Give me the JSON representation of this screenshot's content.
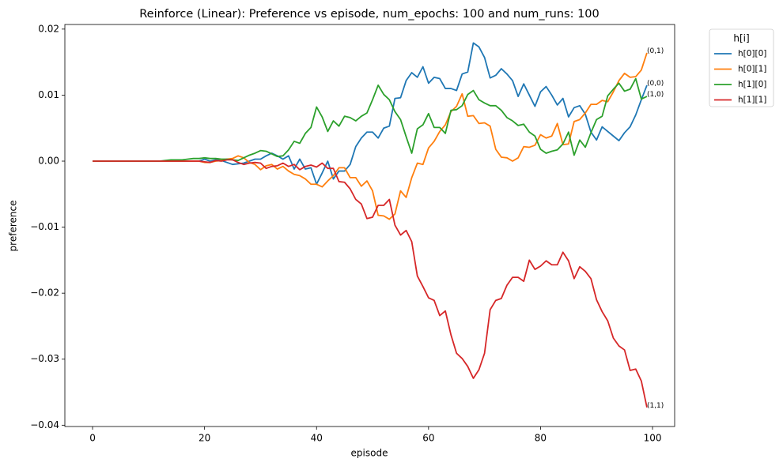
{
  "chart_data": {
    "type": "line",
    "title": "Reinforce (Linear): Preference vs episode, num_epochs: 100 and num_runs: 100",
    "x_label": "episode",
    "y_label": "preference",
    "x": [
      0,
      1,
      2,
      3,
      4,
      5,
      6,
      7,
      8,
      9,
      10,
      11,
      12,
      13,
      14,
      15,
      16,
      17,
      18,
      19,
      20,
      21,
      22,
      23,
      24,
      25,
      26,
      27,
      28,
      29,
      30,
      31,
      32,
      33,
      34,
      35,
      36,
      37,
      38,
      39,
      40,
      41,
      42,
      43,
      44,
      45,
      46,
      47,
      48,
      49,
      50,
      51,
      52,
      53,
      54,
      55,
      56,
      57,
      58,
      59,
      60,
      61,
      62,
      63,
      64,
      65,
      66,
      67,
      68,
      69,
      70,
      71,
      72,
      73,
      74,
      75,
      76,
      77,
      78,
      79,
      80,
      81,
      82,
      83,
      84,
      85,
      86,
      87,
      88,
      89,
      90,
      91,
      92,
      93,
      94,
      95,
      96,
      97,
      98,
      99
    ],
    "xlim": [
      -4.95,
      103.95
    ],
    "xticks": [
      0,
      20,
      40,
      60,
      80,
      100
    ],
    "ylim": [
      -0.0402,
      0.0207
    ],
    "yticks": [
      {
        "value": -0.04,
        "label": "−0.04"
      },
      {
        "value": -0.03,
        "label": "−0.03"
      },
      {
        "value": -0.02,
        "label": "−0.02"
      },
      {
        "value": -0.01,
        "label": "−0.01"
      },
      {
        "value": 0,
        "label": "0.00"
      },
      0.01,
      0.02
    ],
    "legend": {
      "title": "h[i]",
      "position": "outside-upper-right"
    },
    "series": [
      {
        "name": "h[0][0]",
        "color": "#1f77b4",
        "end_label": "(0,0)",
        "values": [
          0,
          0,
          0,
          0,
          0,
          0,
          0,
          0,
          0,
          0,
          0,
          0,
          0,
          0,
          0,
          0,
          0,
          0,
          0,
          0,
          0.0003,
          0,
          0.0002,
          0.0001,
          -0.0002,
          -0.0005,
          -0.0004,
          -0.0003,
          0,
          0.0003,
          0.0003,
          0.0008,
          0.0012,
          0.0008,
          0.0003,
          0.0008,
          -0.0012,
          0.0003,
          -0.0012,
          -0.001,
          -0.0035,
          -0.0018,
          0,
          -0.0027,
          -0.0015,
          -0.0015,
          -0.0005,
          0.0022,
          0.0035,
          0.0044,
          0.0044,
          0.0035,
          0.005,
          0.0053,
          0.0095,
          0.0096,
          0.0122,
          0.0134,
          0.0127,
          0.0143,
          0.0118,
          0.0127,
          0.0125,
          0.011,
          0.011,
          0.0107,
          0.0132,
          0.0135,
          0.0179,
          0.0173,
          0.0157,
          0.0126,
          0.013,
          0.014,
          0.0132,
          0.0122,
          0.0098,
          0.0117,
          0.01,
          0.0083,
          0.0105,
          0.0113,
          0.01,
          0.0085,
          0.0095,
          0.0067,
          0.0081,
          0.0084,
          0.0071,
          0.0044,
          0.0032,
          0.0052,
          0.0045,
          0.0038,
          0.0031,
          0.0043,
          0.0052,
          0.007,
          0.0093,
          0.0115
        ]
      },
      {
        "name": "h[0][1]",
        "color": "#ff7f0e",
        "end_label": "(0,1)",
        "values": [
          0,
          0,
          0,
          0,
          0,
          0,
          0,
          0,
          0,
          0,
          0,
          0,
          0,
          0,
          0,
          0,
          0,
          0,
          0,
          0,
          -0.0002,
          -0.0002,
          0,
          0.0001,
          0.0003,
          0.0004,
          0.0008,
          0.0005,
          -0.0002,
          -0.0005,
          -0.0013,
          -0.0007,
          -0.0005,
          -0.0012,
          -0.0008,
          -0.0015,
          -0.002,
          -0.0022,
          -0.0027,
          -0.0035,
          -0.0035,
          -0.0039,
          -0.003,
          -0.0022,
          -0.001,
          -0.001,
          -0.0025,
          -0.0025,
          -0.0038,
          -0.003,
          -0.0045,
          -0.0082,
          -0.0083,
          -0.0088,
          -0.008,
          -0.0045,
          -0.0055,
          -0.0025,
          -0.0003,
          -0.0005,
          0.002,
          0.003,
          0.0045,
          0.0055,
          0.0075,
          0.0083,
          0.0102,
          0.0068,
          0.0069,
          0.0057,
          0.0058,
          0.0053,
          0.0018,
          0.0006,
          0.0005,
          0,
          0.0005,
          0.0022,
          0.0021,
          0.0024,
          0.004,
          0.0035,
          0.0038,
          0.0057,
          0.0025,
          0.0026,
          0.006,
          0.0063,
          0.0073,
          0.0086,
          0.0086,
          0.0092,
          0.009,
          0.0105,
          0.0122,
          0.0133,
          0.0127,
          0.0128,
          0.0138,
          0.0164
        ]
      },
      {
        "name": "h[1][0]",
        "color": "#2ca02c",
        "end_label": "(1,0)",
        "values": [
          0,
          0,
          0,
          0,
          0,
          0,
          0,
          0,
          0,
          0,
          0,
          0,
          0,
          0.0001,
          0.0002,
          0.0002,
          0.0002,
          0.0003,
          0.0004,
          0.0004,
          0.0005,
          0.0004,
          0.0004,
          0.0003,
          0.0003,
          0.0002,
          0.0001,
          0.0005,
          0.0009,
          0.0012,
          0.0016,
          0.0015,
          0.0011,
          0.0007,
          0.0008,
          0.0017,
          0.003,
          0.0027,
          0.0042,
          0.0051,
          0.0082,
          0.0067,
          0.0045,
          0.0061,
          0.0053,
          0.0068,
          0.0066,
          0.0061,
          0.0068,
          0.0073,
          0.0093,
          0.0115,
          0.0101,
          0.0093,
          0.0075,
          0.0063,
          0.0037,
          0.0012,
          0.0049,
          0.0055,
          0.0072,
          0.0051,
          0.0051,
          0.0042,
          0.0077,
          0.0078,
          0.0084,
          0.0101,
          0.0107,
          0.0093,
          0.0088,
          0.0084,
          0.0084,
          0.0077,
          0.0066,
          0.0061,
          0.0054,
          0.0056,
          0.0044,
          0.0038,
          0.0018,
          0.0012,
          0.0015,
          0.0017,
          0.0026,
          0.0044,
          0.0009,
          0.0032,
          0.0021,
          0.0043,
          0.0063,
          0.0068,
          0.0099,
          0.0109,
          0.0118,
          0.0106,
          0.0109,
          0.0125,
          0.0094,
          0.0098
        ]
      },
      {
        "name": "h[1][1]",
        "color": "#d62728",
        "end_label": "(1,1)",
        "values": [
          0,
          0,
          0,
          0,
          0,
          0,
          0,
          0,
          0,
          0,
          0,
          0,
          0,
          0,
          0,
          0,
          0,
          0,
          0,
          0,
          -0.0001,
          -0.0002,
          0.0001,
          0,
          0.0002,
          0.0002,
          -0.0002,
          -0.0005,
          -0.0003,
          -0.0002,
          -0.0003,
          -0.0011,
          -0.0008,
          -0.0007,
          -0.0003,
          -0.0008,
          -0.0005,
          -0.0013,
          -0.0008,
          -0.0006,
          -0.0009,
          -0.0003,
          -0.0011,
          -0.0011,
          -0.0031,
          -0.0032,
          -0.0042,
          -0.0058,
          -0.0065,
          -0.0087,
          -0.0085,
          -0.0067,
          -0.0067,
          -0.0058,
          -0.0097,
          -0.0112,
          -0.0105,
          -0.0122,
          -0.0174,
          -0.019,
          -0.0207,
          -0.0211,
          -0.0234,
          -0.0227,
          -0.0263,
          -0.0291,
          -0.0299,
          -0.0311,
          -0.0329,
          -0.0316,
          -0.0291,
          -0.0225,
          -0.0211,
          -0.0208,
          -0.0188,
          -0.0176,
          -0.0176,
          -0.0182,
          -0.015,
          -0.0164,
          -0.0159,
          -0.0151,
          -0.0157,
          -0.0157,
          -0.0138,
          -0.0151,
          -0.0178,
          -0.016,
          -0.0167,
          -0.0178,
          -0.021,
          -0.0228,
          -0.0242,
          -0.0268,
          -0.028,
          -0.0286,
          -0.0317,
          -0.0315,
          -0.0333,
          -0.0373
        ]
      }
    ]
  }
}
